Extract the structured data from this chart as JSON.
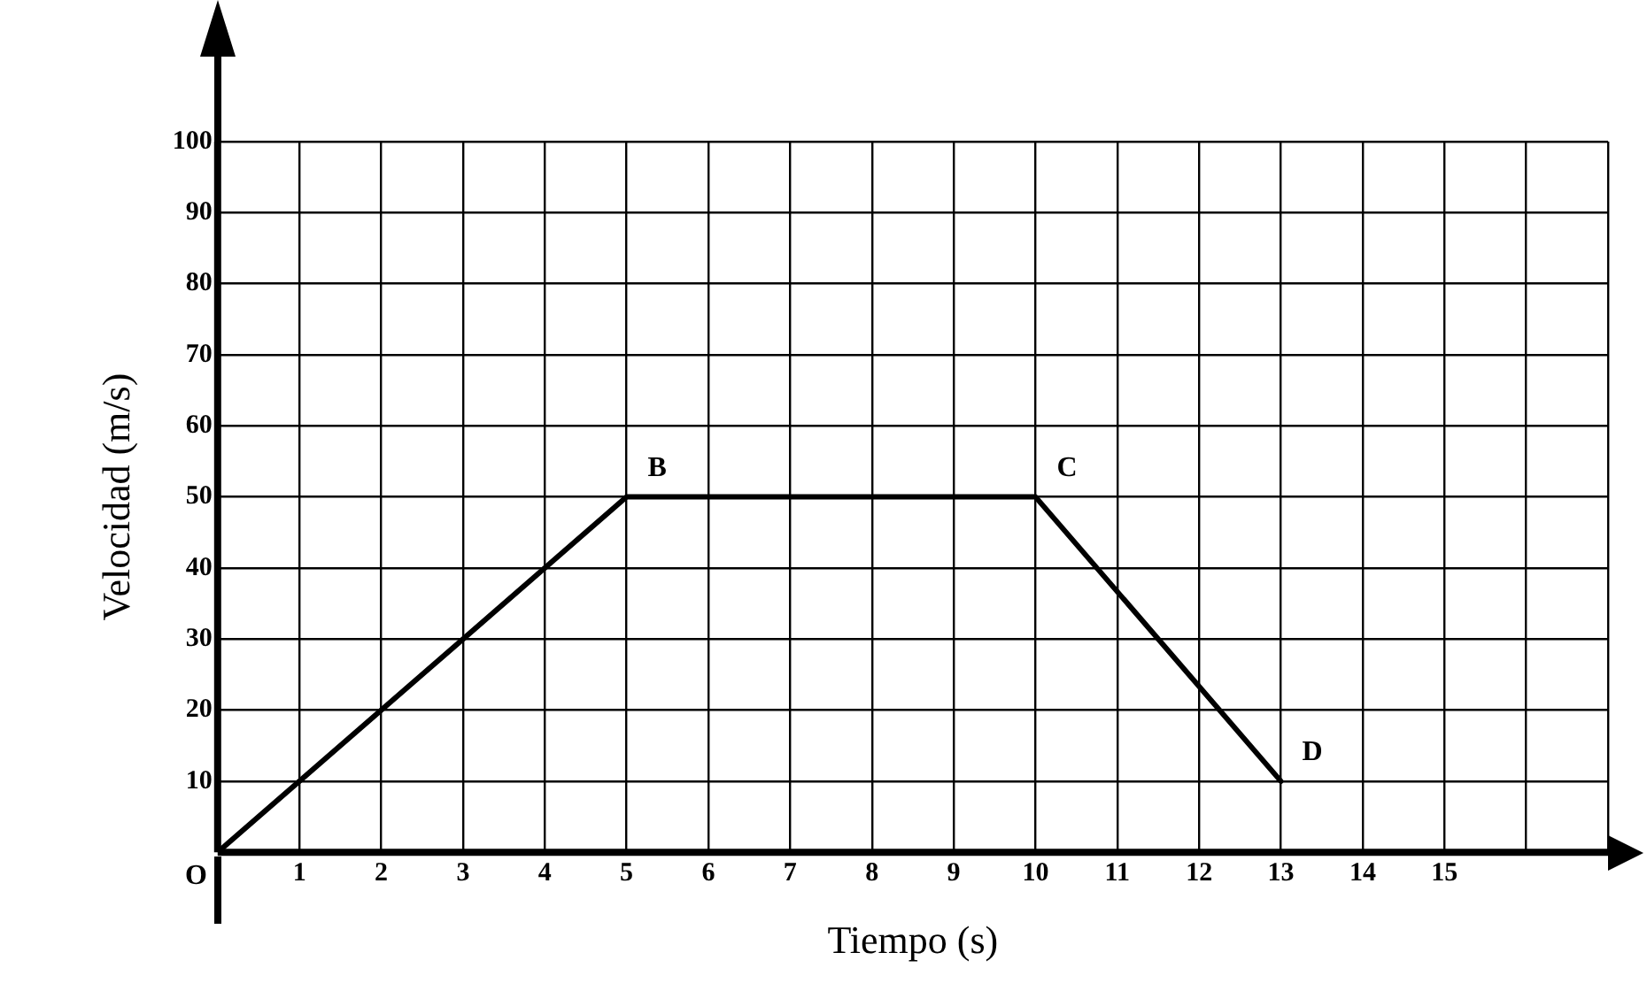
{
  "chart_data": {
    "type": "line",
    "xlabel": "Tiempo (s)",
    "ylabel": "Velocidad (m/s)",
    "x": [
      0,
      5,
      10,
      13
    ],
    "series": [
      {
        "color": "#000000",
        "values": [
          0,
          50,
          50,
          10
        ]
      }
    ],
    "xlim": [
      0,
      17
    ],
    "xticks": [
      {
        "value": 0,
        "label": null
      },
      1,
      2,
      3,
      4,
      5,
      6,
      7,
      8,
      9,
      10,
      11,
      12,
      13,
      14,
      15,
      {
        "value": 16,
        "label": null
      },
      {
        "value": 17,
        "label": null
      }
    ],
    "ylim": [
      0,
      100
    ],
    "yticks": [
      {
        "value": 0,
        "label": null
      },
      10,
      20,
      30,
      40,
      50,
      60,
      70,
      80,
      90,
      100
    ],
    "grid": true,
    "legend": false,
    "marker": "none",
    "line_style": "solid",
    "annotations": [
      {
        "text": "O",
        "x": 0,
        "y": 0
      },
      {
        "text": "B",
        "x": 5,
        "y": 50
      },
      {
        "text": "C",
        "x": 10,
        "y": 50
      },
      {
        "text": "D",
        "x": 13,
        "y": 10
      }
    ]
  }
}
